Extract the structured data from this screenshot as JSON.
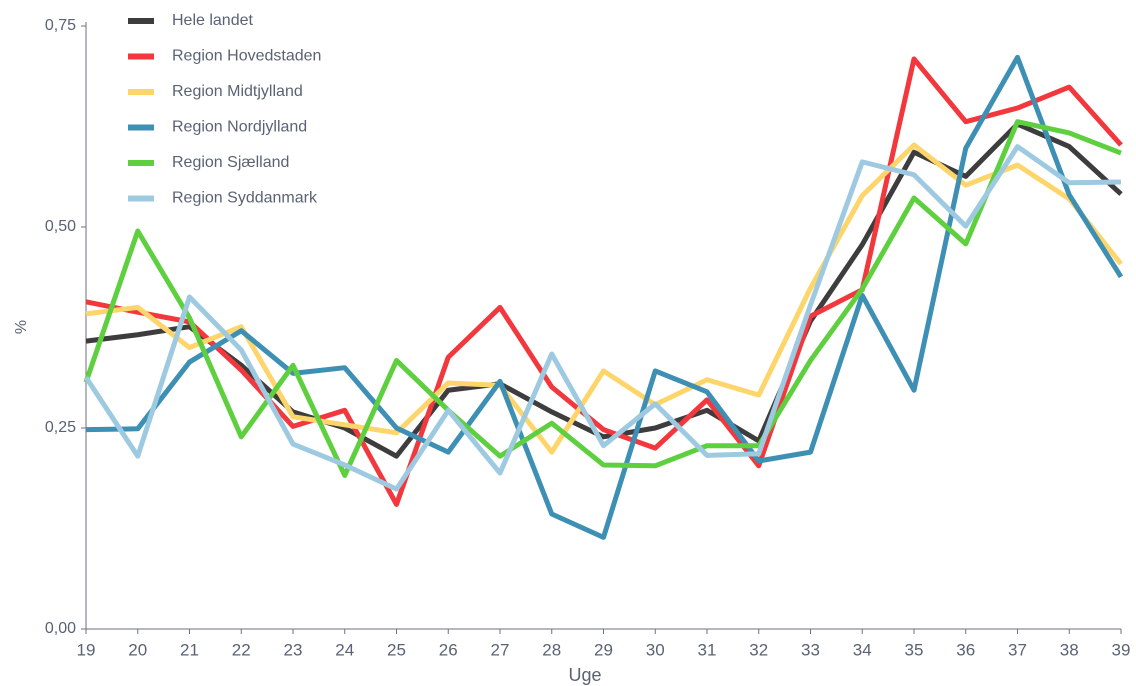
{
  "chart_data": {
    "type": "line",
    "x_label": "Uge",
    "y_label": "%",
    "x": [
      19,
      20,
      21,
      22,
      23,
      24,
      25,
      26,
      27,
      28,
      29,
      30,
      31,
      32,
      33,
      34,
      35,
      36,
      37,
      38,
      39
    ],
    "xlim": [
      19,
      39
    ],
    "xticks": [
      19,
      20,
      21,
      22,
      23,
      24,
      25,
      26,
      27,
      28,
      29,
      30,
      31,
      32,
      33,
      34,
      35,
      36,
      37,
      38,
      39
    ],
    "ylim": [
      0,
      0.75
    ],
    "yticks": [
      {
        "value": 0,
        "label": "0,00"
      },
      {
        "value": 0.25,
        "label": "0,25"
      },
      {
        "value": 0.5,
        "label": "0,50"
      },
      {
        "value": 0.75,
        "label": "0,75"
      }
    ],
    "legend": "top-left",
    "series": [
      {
        "name": "Hele landet",
        "color": "#3d3d3d",
        "values": [
          0.358,
          0.366,
          0.376,
          0.328,
          0.27,
          0.25,
          0.215,
          0.297,
          0.305,
          0.27,
          0.239,
          0.25,
          0.272,
          0.234,
          0.383,
          0.478,
          0.593,
          0.563,
          0.628,
          0.6,
          0.541
        ]
      },
      {
        "name": "Region Hovedstaden",
        "color": "#f2373d",
        "values": [
          0.407,
          0.394,
          0.382,
          0.322,
          0.252,
          0.272,
          0.155,
          0.338,
          0.4,
          0.301,
          0.248,
          0.225,
          0.285,
          0.203,
          0.389,
          0.422,
          0.709,
          0.631,
          0.648,
          0.674,
          0.602
        ]
      },
      {
        "name": "Region Midtjylland",
        "color": "#fdd56a",
        "values": [
          0.392,
          0.4,
          0.35,
          0.376,
          0.264,
          0.254,
          0.244,
          0.306,
          0.303,
          0.22,
          0.321,
          0.279,
          0.31,
          0.291,
          0.424,
          0.539,
          0.602,
          0.552,
          0.577,
          0.535,
          0.454
        ]
      },
      {
        "name": "Region Nordjylland",
        "color": "#3d8fb4",
        "values": [
          0.248,
          0.249,
          0.332,
          0.371,
          0.318,
          0.325,
          0.25,
          0.22,
          0.308,
          0.143,
          0.114,
          0.321,
          0.295,
          0.209,
          0.22,
          0.415,
          0.297,
          0.598,
          0.711,
          0.54,
          0.438
        ]
      },
      {
        "name": "Region Sjælland",
        "color": "#5ecf3f",
        "values": [
          0.307,
          0.495,
          0.387,
          0.239,
          0.328,
          0.191,
          0.334,
          0.272,
          0.215,
          0.256,
          0.204,
          0.203,
          0.228,
          0.228,
          0.334,
          0.423,
          0.536,
          0.479,
          0.631,
          0.617,
          0.592
        ]
      },
      {
        "name": "Region Syddanmark",
        "color": "#9ecae1",
        "values": [
          0.313,
          0.215,
          0.413,
          0.347,
          0.23,
          0.204,
          0.174,
          0.272,
          0.194,
          0.342,
          0.228,
          0.28,
          0.216,
          0.218,
          0.403,
          0.581,
          0.565,
          0.501,
          0.6,
          0.555,
          0.556
        ]
      }
    ]
  }
}
